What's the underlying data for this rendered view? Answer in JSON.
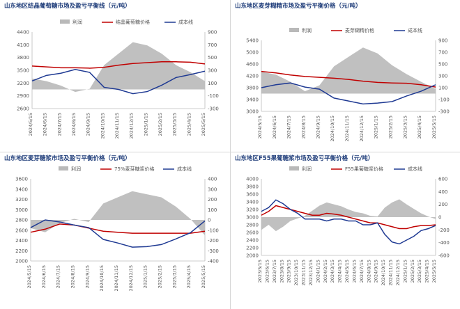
{
  "colors": {
    "profit": "#b9b9b9",
    "price": "#c00000",
    "cost": "#1f3a93",
    "title": "#1f3d7a",
    "axis": "#808080"
  },
  "charts": [
    {
      "title": "山东地区结晶葡萄糖市场及盈亏平衡线（元/吨）",
      "legend": {
        "profit": "利润",
        "price": "结晶葡萄糖价格",
        "cost": "成本线"
      },
      "left_ticks": [
        "4400",
        "4100",
        "3800",
        "3500",
        "3200",
        "2900",
        "2600"
      ],
      "right_ticks": [
        "900",
        "700",
        "500",
        "300",
        "100",
        "-100",
        "-300"
      ],
      "x_ticks": [
        "2024/5/15",
        "2024/6/15",
        "2024/7/15",
        "2024/8/15",
        "2024/9/15",
        "2024/10/15",
        "2024/11/15",
        "2024/12/15",
        "2025/1/15",
        "2025/2/15",
        "2025/3/15",
        "2025/4/15",
        "2025/5/15"
      ]
    },
    {
      "title": "山东地区麦芽糊精市场及盈亏平衡价格（元/吨）",
      "legend": {
        "profit": "利润",
        "price": "麦芽糊精价格",
        "cost": "成本线"
      },
      "left_ticks": [
        "5400",
        "5000",
        "4600",
        "4200",
        "3800",
        "3400",
        "3000"
      ],
      "right_ticks": [
        "900",
        "700",
        "500",
        "300",
        "100",
        "-100",
        "-300"
      ],
      "x_ticks": [
        "2024/5/15",
        "2024/6/15",
        "2024/7/15",
        "2024/8/15",
        "2024/9/15",
        "2024/10/15",
        "2024/11/15",
        "2024/12/15",
        "2025/1/15",
        "2025/2/15",
        "2025/3/15",
        "2025/4/15",
        "2025/5/15"
      ]
    },
    {
      "title": "山东地区麦芽糖浆市场及盈亏平衡价格（元/吨）",
      "legend": {
        "profit": "利润",
        "price": "75%麦芽糖浆价格",
        "cost": "成本线"
      },
      "left_ticks": [
        "3600",
        "3400",
        "3200",
        "3000",
        "2800",
        "2600",
        "2400",
        "2200",
        "2000"
      ],
      "right_ticks": [
        "400",
        "300",
        "200",
        "100",
        "0",
        "-100",
        "-200",
        "-300",
        "-400"
      ],
      "x_ticks": [
        "2024/5/15",
        "2024/6/15",
        "2024/7/15",
        "2024/8/15",
        "2024/9/15",
        "2024/10/15",
        "2024/11/15",
        "2024/12/15",
        "2025/1/15",
        "2025/2/15",
        "2025/3/15",
        "2025/4/15",
        "2025/5/15"
      ]
    },
    {
      "title": "山东地区F55果葡糖浆市场及盈亏平衡价格（元/吨）",
      "legend": {
        "profit": "利润",
        "price": "F55果葡糖浆价格",
        "cost": "成本线"
      },
      "left_ticks": [
        "4000",
        "3800",
        "3600",
        "3400",
        "3200",
        "3000",
        "2800",
        "2600",
        "2400",
        "2200",
        "2000"
      ],
      "right_ticks": [
        "600",
        "400",
        "200",
        "0",
        "-200",
        "-400",
        "-600"
      ],
      "x_ticks": [
        "2023/5/15",
        "2023/6/15",
        "2023/7/15",
        "2023/8/15",
        "2023/9/15",
        "2023/10/15",
        "2023/11/15",
        "2023/12/15",
        "2024/1/15",
        "2024/2/15",
        "2024/3/15",
        "2024/4/15",
        "2024/5/15",
        "2024/6/15",
        "2024/7/15",
        "2024/8/15",
        "2024/9/15",
        "2024/10/15",
        "2024/11/15",
        "2024/12/15",
        "2025/1/15",
        "2025/2/15",
        "2025/3/15",
        "2025/4/15",
        "2025/5/15"
      ]
    }
  ],
  "chart_data": [
    {
      "type": "line",
      "title": "山东地区结晶葡萄糖市场及盈亏平衡线（元/吨）",
      "x": [
        "2024/5/15",
        "2024/6/15",
        "2024/7/15",
        "2024/8/15",
        "2024/9/15",
        "2024/10/15",
        "2024/11/15",
        "2024/12/15",
        "2025/1/15",
        "2025/2/15",
        "2025/3/15",
        "2025/4/15",
        "2025/5/15"
      ],
      "ylim_left": [
        2600,
        4400
      ],
      "ylim_right": [
        -300,
        900
      ],
      "series": [
        {
          "name": "利润",
          "axis": "right",
          "kind": "area",
          "values": [
            170,
            130,
            60,
            -40,
            10,
            380,
            560,
            740,
            690,
            560,
            380,
            270,
            130
          ]
        },
        {
          "name": "结晶葡萄糖价格",
          "axis": "left",
          "kind": "line",
          "values": [
            3600,
            3580,
            3560,
            3560,
            3550,
            3570,
            3620,
            3660,
            3680,
            3700,
            3700,
            3690,
            3650
          ]
        },
        {
          "name": "成本线",
          "axis": "left",
          "kind": "line",
          "values": [
            3250,
            3380,
            3430,
            3520,
            3450,
            3100,
            3050,
            2950,
            3000,
            3150,
            3330,
            3400,
            3480
          ]
        }
      ]
    },
    {
      "type": "line",
      "title": "山东地区麦芽糊精市场及盈亏平衡价格（元/吨）",
      "x": [
        "2024/5/15",
        "2024/6/15",
        "2024/7/15",
        "2024/8/15",
        "2024/9/15",
        "2024/10/15",
        "2024/11/15",
        "2024/12/15",
        "2025/1/15",
        "2025/2/15",
        "2025/3/15",
        "2025/4/15",
        "2025/5/15"
      ],
      "ylim_left": [
        3000,
        5400
      ],
      "ylim_right": [
        -300,
        900
      ],
      "series": [
        {
          "name": "利润",
          "axis": "right",
          "kind": "area",
          "values": [
            370,
            320,
            200,
            40,
            140,
            460,
            620,
            780,
            680,
            480,
            330,
            200,
            80
          ]
        },
        {
          "name": "麦芽糊精价格",
          "axis": "left",
          "kind": "line",
          "values": [
            4350,
            4300,
            4230,
            4180,
            4150,
            4120,
            4080,
            4020,
            3980,
            3960,
            3950,
            3900,
            3820
          ]
        },
        {
          "name": "成本线",
          "axis": "left",
          "kind": "line",
          "values": [
            3800,
            3900,
            3960,
            3820,
            3750,
            3450,
            3350,
            3250,
            3280,
            3330,
            3520,
            3680,
            3900
          ]
        }
      ]
    },
    {
      "type": "line",
      "title": "山东地区麦芽糖浆市场及盈亏平衡价格（元/吨）",
      "x": [
        "2024/5/15",
        "2024/6/15",
        "2024/7/15",
        "2024/8/15",
        "2024/9/15",
        "2024/10/15",
        "2024/11/15",
        "2024/12/15",
        "2025/1/15",
        "2025/2/15",
        "2025/3/15",
        "2025/4/15",
        "2025/5/15"
      ],
      "ylim_left": [
        2000,
        3600
      ],
      "ylim_right": [
        -400,
        400
      ],
      "series": [
        {
          "name": "利润",
          "axis": "right",
          "kind": "area",
          "values": [
            -80,
            -120,
            -30,
            10,
            -20,
            160,
            220,
            280,
            250,
            220,
            130,
            10,
            -150
          ]
        },
        {
          "name": "75%麦芽糖浆价格",
          "axis": "left",
          "kind": "line",
          "values": [
            2560,
            2620,
            2720,
            2700,
            2640,
            2580,
            2560,
            2540,
            2540,
            2540,
            2540,
            2540,
            2580
          ]
        },
        {
          "name": "成本线",
          "axis": "left",
          "kind": "line",
          "values": [
            2650,
            2800,
            2760,
            2700,
            2650,
            2420,
            2350,
            2270,
            2280,
            2320,
            2430,
            2550,
            2780
          ]
        }
      ]
    },
    {
      "type": "line",
      "title": "山东地区F55果葡糖浆市场及盈亏平衡价格（元/吨）",
      "x": [
        "2023/5/15",
        "2023/6/15",
        "2023/7/15",
        "2023/8/15",
        "2023/9/15",
        "2023/10/15",
        "2023/11/15",
        "2023/12/15",
        "2024/1/15",
        "2024/2/15",
        "2024/3/15",
        "2024/4/15",
        "2024/5/15",
        "2024/6/15",
        "2024/7/15",
        "2024/8/15",
        "2024/9/15",
        "2024/10/15",
        "2024/11/15",
        "2024/12/15",
        "2025/1/15",
        "2025/2/15",
        "2025/3/15",
        "2025/4/15",
        "2025/5/15"
      ],
      "ylim_left": [
        2000,
        4000
      ],
      "ylim_right": [
        -600,
        600
      ],
      "series": [
        {
          "name": "利润",
          "axis": "right",
          "kind": "area",
          "values": [
            -200,
            -120,
            -220,
            -150,
            -60,
            -20,
            20,
            100,
            180,
            230,
            200,
            170,
            120,
            80,
            60,
            20,
            10,
            150,
            230,
            280,
            200,
            130,
            60,
            10,
            -30
          ]
        },
        {
          "name": "F55果葡糖浆价格",
          "axis": "left",
          "kind": "line",
          "values": [
            3050,
            3150,
            3300,
            3250,
            3200,
            3150,
            3100,
            3050,
            3050,
            3100,
            3080,
            3050,
            3000,
            2950,
            2900,
            2850,
            2850,
            2800,
            2750,
            2700,
            2700,
            2750,
            2780,
            2780,
            2800
          ]
        },
        {
          "name": "成本线",
          "axis": "left",
          "kind": "line",
          "values": [
            3150,
            3250,
            3450,
            3350,
            3200,
            3100,
            2950,
            2950,
            2950,
            2900,
            2950,
            2950,
            2900,
            2900,
            2800,
            2800,
            2850,
            2550,
            2350,
            2300,
            2400,
            2500,
            2650,
            2700,
            2780
          ]
        }
      ]
    }
  ]
}
